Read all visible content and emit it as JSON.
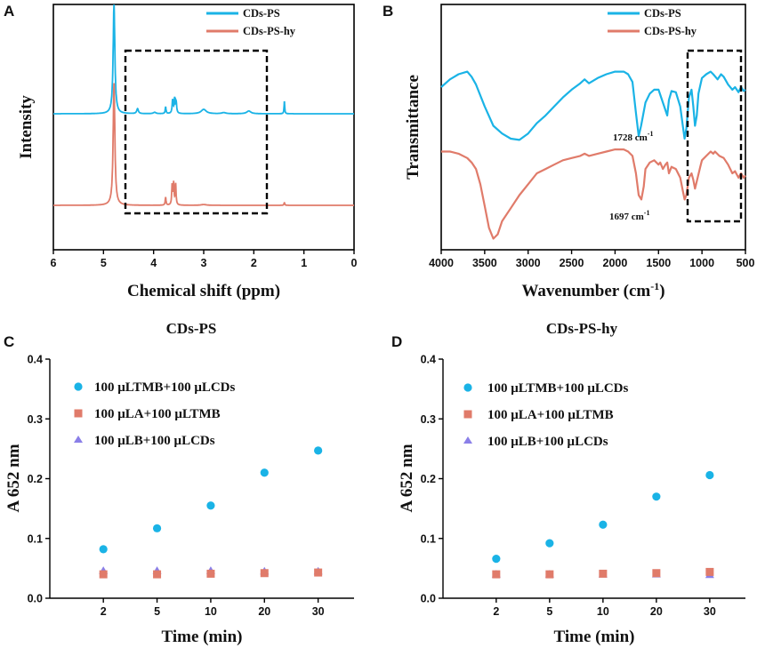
{
  "colors": {
    "blue": "#1ab3e6",
    "salmon": "#e07b6a",
    "purple": "#8a7fe8",
    "frame": "#000000"
  },
  "chart_data": [
    {
      "panel": "A",
      "type": "line",
      "title": "",
      "xlabel": "Chemical shift (ppm)",
      "ylabel": "Intensity",
      "xlim": [
        6,
        0
      ],
      "x_reversed": true,
      "xticks": [
        6,
        5,
        4,
        3,
        2,
        1,
        0
      ],
      "legend_position": "top-right",
      "highlight_box_ppm": [
        4.5,
        1.75
      ],
      "series": [
        {
          "name": "CDs-PS",
          "color": "#1ab3e6",
          "baseline": 1.0,
          "peaks": [
            {
              "ppm": 4.79,
              "height": 4.0,
              "width": 0.02
            },
            {
              "ppm": 4.32,
              "height": 0.18,
              "width": 0.02
            },
            {
              "ppm": 3.98,
              "height": 0.05,
              "width": 0.03
            },
            {
              "ppm": 3.76,
              "height": 0.25,
              "width": 0.01
            },
            {
              "ppm": 3.62,
              "height": 0.48,
              "width": 0.012
            },
            {
              "ppm": 3.58,
              "height": 0.52,
              "width": 0.012
            },
            {
              "ppm": 3.55,
              "height": 0.4,
              "width": 0.012
            },
            {
              "ppm": 3.0,
              "height": 0.16,
              "width": 0.06
            },
            {
              "ppm": 2.6,
              "height": 0.04,
              "width": 0.05
            },
            {
              "ppm": 2.1,
              "height": 0.1,
              "width": 0.05
            },
            {
              "ppm": 1.39,
              "height": 0.45,
              "width": 0.008
            }
          ]
        },
        {
          "name": "CDs-PS-hy",
          "color": "#e07b6a",
          "baseline": 0.0,
          "peaks": [
            {
              "ppm": 4.79,
              "height": 4.6,
              "width": 0.02
            },
            {
              "ppm": 3.76,
              "height": 0.3,
              "width": 0.01
            },
            {
              "ppm": 3.63,
              "height": 0.75,
              "width": 0.01
            },
            {
              "ppm": 3.6,
              "height": 0.8,
              "width": 0.01
            },
            {
              "ppm": 3.56,
              "height": 0.78,
              "width": 0.01
            },
            {
              "ppm": 3.0,
              "height": 0.03,
              "width": 0.06
            },
            {
              "ppm": 1.39,
              "height": 0.1,
              "width": 0.01
            }
          ]
        }
      ]
    },
    {
      "panel": "B",
      "type": "line",
      "title": "",
      "xlabel": "Wavenumber (cm-1)",
      "xlabel_main": "Wavenumber (cm",
      "xlabel_sup": "-1",
      "xlabel_end": ")",
      "ylabel": "Transmittance",
      "xlim": [
        4000,
        500
      ],
      "x_reversed": true,
      "xticks": [
        4000,
        3500,
        3000,
        2500,
        2000,
        1500,
        1000,
        500
      ],
      "legend_position": "top-right",
      "highlight_box_wn": [
        1200,
        520
      ],
      "annotations": [
        {
          "label": "1728 cm",
          "sup": "-1",
          "series": "CDs-PS"
        },
        {
          "label": "1697 cm",
          "sup": "-1",
          "series": "CDs-PS-hy"
        }
      ],
      "series": [
        {
          "name": "CDs-PS",
          "color": "#1ab3e6",
          "points": [
            [
              4000,
              0.6
            ],
            [
              3900,
              0.66
            ],
            [
              3800,
              0.7
            ],
            [
              3700,
              0.72
            ],
            [
              3650,
              0.68
            ],
            [
              3600,
              0.62
            ],
            [
              3500,
              0.45
            ],
            [
              3400,
              0.3
            ],
            [
              3300,
              0.24
            ],
            [
              3200,
              0.2
            ],
            [
              3100,
              0.19
            ],
            [
              3000,
              0.24
            ],
            [
              2900,
              0.32
            ],
            [
              2800,
              0.38
            ],
            [
              2700,
              0.45
            ],
            [
              2600,
              0.52
            ],
            [
              2500,
              0.58
            ],
            [
              2400,
              0.63
            ],
            [
              2350,
              0.66
            ],
            [
              2300,
              0.63
            ],
            [
              2200,
              0.67
            ],
            [
              2100,
              0.7
            ],
            [
              2000,
              0.72
            ],
            [
              1900,
              0.72
            ],
            [
              1850,
              0.7
            ],
            [
              1800,
              0.64
            ],
            [
              1760,
              0.4
            ],
            [
              1728,
              0.22
            ],
            [
              1700,
              0.3
            ],
            [
              1650,
              0.48
            ],
            [
              1600,
              0.55
            ],
            [
              1550,
              0.58
            ],
            [
              1500,
              0.58
            ],
            [
              1450,
              0.48
            ],
            [
              1400,
              0.38
            ],
            [
              1380,
              0.5
            ],
            [
              1350,
              0.57
            ],
            [
              1300,
              0.56
            ],
            [
              1250,
              0.45
            ],
            [
              1220,
              0.3
            ],
            [
              1200,
              0.2
            ],
            [
              1180,
              0.28
            ],
            [
              1150,
              0.52
            ],
            [
              1120,
              0.58
            ],
            [
              1100,
              0.45
            ],
            [
              1080,
              0.3
            ],
            [
              1060,
              0.38
            ],
            [
              1040,
              0.55
            ],
            [
              1000,
              0.67
            ],
            [
              950,
              0.7
            ],
            [
              900,
              0.72
            ],
            [
              870,
              0.7
            ],
            [
              820,
              0.66
            ],
            [
              780,
              0.7
            ],
            [
              750,
              0.68
            ],
            [
              700,
              0.62
            ],
            [
              650,
              0.58
            ],
            [
              620,
              0.6
            ],
            [
              580,
              0.56
            ],
            [
              550,
              0.6
            ],
            [
              520,
              0.57
            ],
            [
              500,
              0.58
            ]
          ]
        },
        {
          "name": "CDs-PS-hy",
          "color": "#e07b6a",
          "points": [
            [
              4000,
              0.1
            ],
            [
              3900,
              0.1
            ],
            [
              3800,
              0.09
            ],
            [
              3700,
              0.07
            ],
            [
              3650,
              0.05
            ],
            [
              3600,
              0.02
            ],
            [
              3550,
              -0.05
            ],
            [
              3500,
              -0.15
            ],
            [
              3450,
              -0.25
            ],
            [
              3400,
              -0.3
            ],
            [
              3350,
              -0.28
            ],
            [
              3300,
              -0.22
            ],
            [
              3200,
              -0.16
            ],
            [
              3100,
              -0.1
            ],
            [
              3000,
              -0.05
            ],
            [
              2900,
              0.0
            ],
            [
              2800,
              0.02
            ],
            [
              2700,
              0.04
            ],
            [
              2600,
              0.06
            ],
            [
              2500,
              0.07
            ],
            [
              2400,
              0.08
            ],
            [
              2350,
              0.09
            ],
            [
              2300,
              0.08
            ],
            [
              2200,
              0.09
            ],
            [
              2100,
              0.1
            ],
            [
              2000,
              0.11
            ],
            [
              1900,
              0.11
            ],
            [
              1850,
              0.1
            ],
            [
              1800,
              0.08
            ],
            [
              1760,
              0.0
            ],
            [
              1728,
              -0.1
            ],
            [
              1697,
              -0.12
            ],
            [
              1670,
              -0.06
            ],
            [
              1650,
              0.02
            ],
            [
              1600,
              0.05
            ],
            [
              1550,
              0.06
            ],
            [
              1500,
              0.04
            ],
            [
              1480,
              0.05
            ],
            [
              1450,
              0.02
            ],
            [
              1420,
              0.04
            ],
            [
              1400,
              0.05
            ],
            [
              1380,
              0.0
            ],
            [
              1350,
              0.03
            ],
            [
              1300,
              0.02
            ],
            [
              1250,
              -0.02
            ],
            [
              1220,
              -0.08
            ],
            [
              1200,
              -0.12
            ],
            [
              1180,
              -0.1
            ],
            [
              1150,
              -0.02
            ],
            [
              1120,
              0.0
            ],
            [
              1100,
              -0.03
            ],
            [
              1080,
              -0.07
            ],
            [
              1050,
              -0.02
            ],
            [
              1020,
              0.03
            ],
            [
              1000,
              0.06
            ],
            [
              950,
              0.08
            ],
            [
              900,
              0.1
            ],
            [
              870,
              0.09
            ],
            [
              850,
              0.1
            ],
            [
              800,
              0.08
            ],
            [
              750,
              0.07
            ],
            [
              700,
              0.04
            ],
            [
              650,
              0.0
            ],
            [
              620,
              0.01
            ],
            [
              580,
              -0.02
            ],
            [
              550,
              0.0
            ],
            [
              520,
              -0.02
            ],
            [
              500,
              -0.01
            ]
          ]
        }
      ]
    },
    {
      "panel": "C",
      "type": "scatter",
      "title": "CDs-PS",
      "xlabel": "Time (min)",
      "ylabel": "A 652 nm",
      "ylim": [
        0.0,
        0.4
      ],
      "yticks": [
        "0.0",
        "0.1",
        "0.2",
        "0.3",
        "0.4"
      ],
      "categories": [
        "2",
        "5",
        "10",
        "20",
        "30"
      ],
      "legend_position": "top-left",
      "series": [
        {
          "name": "100 μLTMB+100 μLCDs",
          "marker": "circle",
          "color": "#1ab3e6",
          "values": [
            0.082,
            0.117,
            0.155,
            0.21,
            0.247
          ]
        },
        {
          "name": "100 μLA+100 μLTMB",
          "marker": "square",
          "color": "#e07b6a",
          "values": [
            0.04,
            0.04,
            0.041,
            0.042,
            0.043
          ]
        },
        {
          "name": "100 μLB+100 μLCDs",
          "marker": "triangle",
          "color": "#8a7fe8",
          "values": [
            0.046,
            0.046,
            0.046,
            0.045,
            0.045
          ]
        }
      ]
    },
    {
      "panel": "D",
      "type": "scatter",
      "title": "CDs-PS-hy",
      "xlabel": "Time (min)",
      "ylabel": "A 652 nm",
      "ylim": [
        0.0,
        0.4
      ],
      "yticks": [
        "0.0",
        "0.1",
        "0.2",
        "0.3",
        "0.4"
      ],
      "categories": [
        "2",
        "5",
        "10",
        "20",
        "30"
      ],
      "legend_position": "top-left",
      "series": [
        {
          "name": "100 μLTMB+100 μLCDs",
          "marker": "circle",
          "color": "#1ab3e6",
          "values": [
            0.066,
            0.092,
            0.123,
            0.17,
            0.206
          ]
        },
        {
          "name": "100 μLA+100 μLTMB",
          "marker": "square",
          "color": "#e07b6a",
          "values": [
            0.04,
            0.04,
            0.041,
            0.042,
            0.044
          ]
        },
        {
          "name": "100 μLB+100 μLCDs",
          "marker": "triangle",
          "color": "#8a7fe8",
          "values": [
            0.04,
            0.04,
            0.04,
            0.04,
            0.039
          ]
        }
      ]
    }
  ]
}
